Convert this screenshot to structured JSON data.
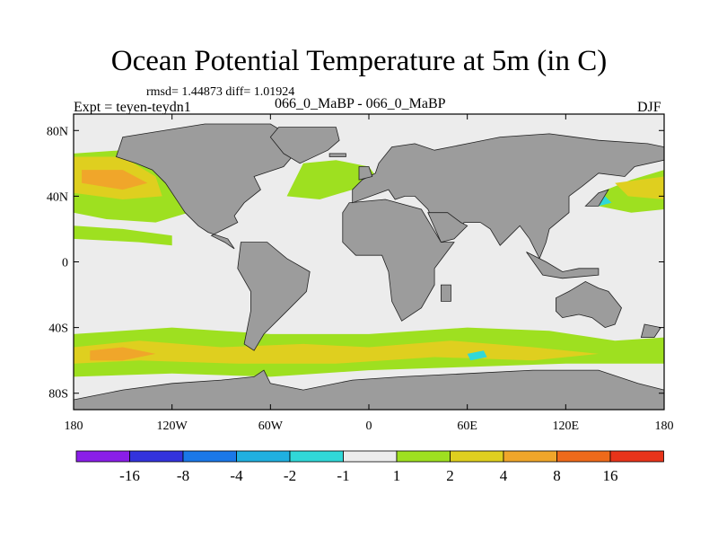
{
  "title": "Ocean Potential Temperature at 5m (in C)",
  "stats": "rmsd= 1.44873 diff= 1.01924",
  "expt": "Expt = teyen-teydn1",
  "subtitle": "066_0_MaBP - 066_0_MaBP",
  "season": "DJF",
  "map": {
    "projection": "cylindrical-equidistant",
    "lon_range": [
      -180,
      180
    ],
    "lat_range": [
      -90,
      90
    ],
    "y_ticks": [
      {
        "lat": 80,
        "label": "80N"
      },
      {
        "lat": 40,
        "label": "40N"
      },
      {
        "lat": 0,
        "label": "0"
      },
      {
        "lat": -40,
        "label": "40S"
      },
      {
        "lat": -80,
        "label": "80S"
      }
    ],
    "x_ticks": [
      {
        "lon": -180,
        "label": "180"
      },
      {
        "lon": -120,
        "label": "120W"
      },
      {
        "lon": -60,
        "label": "60W"
      },
      {
        "lon": 0,
        "label": "0"
      },
      {
        "lon": 60,
        "label": "60E"
      },
      {
        "lon": 120,
        "label": "120E"
      },
      {
        "lon": 180,
        "label": "180"
      }
    ],
    "land_color": "#9c9c9c",
    "ocean_background_color": "#ececec",
    "land_regions": [
      {
        "name": "north-america",
        "points": [
          [
            -150,
            76
          ],
          [
            -100,
            84
          ],
          [
            -60,
            84
          ],
          [
            -40,
            72
          ],
          [
            -52,
            58
          ],
          [
            -70,
            52
          ],
          [
            -66,
            44
          ],
          [
            -76,
            36
          ],
          [
            -82,
            28
          ],
          [
            -80,
            24
          ],
          [
            -88,
            20
          ],
          [
            -96,
            16
          ],
          [
            -88,
            12
          ],
          [
            -82,
            8
          ],
          [
            -86,
            14
          ],
          [
            -98,
            18
          ],
          [
            -104,
            22
          ],
          [
            -112,
            30
          ],
          [
            -116,
            36
          ],
          [
            -124,
            48
          ],
          [
            -132,
            56
          ],
          [
            -142,
            60
          ],
          [
            -154,
            64
          ],
          [
            -150,
            76
          ]
        ]
      },
      {
        "name": "greenland",
        "points": [
          [
            -55,
            82
          ],
          [
            -20,
            82
          ],
          [
            -18,
            74
          ],
          [
            -25,
            68
          ],
          [
            -42,
            60
          ],
          [
            -52,
            66
          ],
          [
            -60,
            76
          ],
          [
            -55,
            82
          ]
        ]
      },
      {
        "name": "south-america",
        "points": [
          [
            -78,
            12
          ],
          [
            -62,
            12
          ],
          [
            -50,
            2
          ],
          [
            -36,
            -6
          ],
          [
            -38,
            -18
          ],
          [
            -48,
            -28
          ],
          [
            -56,
            -36
          ],
          [
            -64,
            -44
          ],
          [
            -70,
            -54
          ],
          [
            -76,
            -50
          ],
          [
            -72,
            -30
          ],
          [
            -72,
            -18
          ],
          [
            -80,
            -4
          ],
          [
            -78,
            12
          ]
        ]
      },
      {
        "name": "africa",
        "points": [
          [
            -16,
            30
          ],
          [
            -12,
            36
          ],
          [
            10,
            38
          ],
          [
            32,
            32
          ],
          [
            44,
            12
          ],
          [
            52,
            12
          ],
          [
            40,
            -4
          ],
          [
            40,
            -14
          ],
          [
            32,
            -28
          ],
          [
            20,
            -36
          ],
          [
            14,
            -24
          ],
          [
            12,
            -6
          ],
          [
            8,
            4
          ],
          [
            -8,
            4
          ],
          [
            -16,
            12
          ],
          [
            -16,
            30
          ]
        ]
      },
      {
        "name": "eurasia",
        "points": [
          [
            -10,
            36
          ],
          [
            -10,
            44
          ],
          [
            -4,
            50
          ],
          [
            4,
            54
          ],
          [
            6,
            60
          ],
          [
            14,
            70
          ],
          [
            28,
            72
          ],
          [
            40,
            68
          ],
          [
            60,
            72
          ],
          [
            80,
            76
          ],
          [
            110,
            78
          ],
          [
            140,
            74
          ],
          [
            170,
            72
          ],
          [
            180,
            70
          ],
          [
            180,
            62
          ],
          [
            162,
            58
          ],
          [
            156,
            52
          ],
          [
            140,
            54
          ],
          [
            130,
            46
          ],
          [
            122,
            40
          ],
          [
            122,
            30
          ],
          [
            110,
            20
          ],
          [
            108,
            12
          ],
          [
            104,
            2
          ],
          [
            98,
            14
          ],
          [
            92,
            22
          ],
          [
            80,
            10
          ],
          [
            74,
            20
          ],
          [
            68,
            24
          ],
          [
            58,
            24
          ],
          [
            56,
            20
          ],
          [
            44,
            14
          ],
          [
            36,
            32
          ],
          [
            28,
            40
          ],
          [
            22,
            40
          ],
          [
            16,
            38
          ],
          [
            12,
            44
          ],
          [
            -10,
            36
          ]
        ]
      },
      {
        "name": "arabia",
        "points": [
          [
            36,
            30
          ],
          [
            48,
            30
          ],
          [
            56,
            24
          ],
          [
            60,
            22
          ],
          [
            52,
            14
          ],
          [
            44,
            12
          ],
          [
            36,
            30
          ]
        ]
      },
      {
        "name": "indonesia",
        "points": [
          [
            96,
            6
          ],
          [
            108,
            0
          ],
          [
            118,
            -6
          ],
          [
            128,
            -4
          ],
          [
            140,
            -4
          ],
          [
            140,
            -8
          ],
          [
            118,
            -10
          ],
          [
            106,
            -8
          ],
          [
            96,
            6
          ]
        ]
      },
      {
        "name": "australia",
        "points": [
          [
            114,
            -22
          ],
          [
            122,
            -18
          ],
          [
            132,
            -12
          ],
          [
            140,
            -16
          ],
          [
            146,
            -18
          ],
          [
            154,
            -28
          ],
          [
            150,
            -38
          ],
          [
            144,
            -40
          ],
          [
            136,
            -34
          ],
          [
            128,
            -32
          ],
          [
            118,
            -34
          ],
          [
            114,
            -30
          ],
          [
            114,
            -22
          ]
        ]
      },
      {
        "name": "madagascar",
        "points": [
          [
            44,
            -14
          ],
          [
            50,
            -14
          ],
          [
            50,
            -24
          ],
          [
            44,
            -24
          ]
        ]
      },
      {
        "name": "japan",
        "points": [
          [
            132,
            34
          ],
          [
            140,
            42
          ],
          [
            146,
            44
          ],
          [
            140,
            34
          ]
        ]
      },
      {
        "name": "antarctica",
        "points": [
          [
            -180,
            -84
          ],
          [
            -180,
            -90
          ],
          [
            180,
            -90
          ],
          [
            180,
            -78
          ],
          [
            164,
            -74
          ],
          [
            140,
            -66
          ],
          [
            100,
            -66
          ],
          [
            60,
            -68
          ],
          [
            20,
            -70
          ],
          [
            -10,
            -72
          ],
          [
            -40,
            -78
          ],
          [
            -60,
            -74
          ],
          [
            -64,
            -66
          ],
          [
            -70,
            -70
          ],
          [
            -90,
            -72
          ],
          [
            -120,
            -74
          ],
          [
            -150,
            -78
          ],
          [
            -180,
            -84
          ]
        ]
      },
      {
        "name": "new-zealand",
        "points": [
          [
            168,
            -38
          ],
          [
            178,
            -40
          ],
          [
            174,
            -46
          ],
          [
            166,
            -46
          ]
        ]
      },
      {
        "name": "uk",
        "points": [
          [
            -6,
            50
          ],
          [
            2,
            52
          ],
          [
            0,
            58
          ],
          [
            -6,
            58
          ]
        ]
      },
      {
        "name": "iceland",
        "points": [
          [
            -24,
            64
          ],
          [
            -14,
            64
          ],
          [
            -14,
            66
          ],
          [
            -24,
            66
          ]
        ]
      }
    ],
    "anomaly_patches": [
      {
        "name": "north-pacific-warm",
        "color": "#9ee020",
        "points": [
          [
            -180,
            66
          ],
          [
            -150,
            68
          ],
          [
            -130,
            58
          ],
          [
            -120,
            46
          ],
          [
            -110,
            30
          ],
          [
            -130,
            24
          ],
          [
            -160,
            26
          ],
          [
            -180,
            30
          ]
        ]
      },
      {
        "name": "north-pacific-core",
        "color": "#dfcf1f",
        "points": [
          [
            -180,
            64
          ],
          [
            -150,
            64
          ],
          [
            -130,
            52
          ],
          [
            -126,
            40
          ],
          [
            -150,
            38
          ],
          [
            -180,
            42
          ]
        ]
      },
      {
        "name": "north-pacific-hot",
        "color": "#f0a62a",
        "points": [
          [
            -175,
            56
          ],
          [
            -150,
            56
          ],
          [
            -135,
            48
          ],
          [
            -150,
            44
          ],
          [
            -175,
            48
          ]
        ]
      },
      {
        "name": "west-pacific-warm",
        "color": "#9ee020",
        "points": [
          [
            140,
            42
          ],
          [
            160,
            50
          ],
          [
            180,
            56
          ],
          [
            180,
            32
          ],
          [
            160,
            30
          ],
          [
            140,
            34
          ]
        ]
      },
      {
        "name": "west-pacific-core",
        "color": "#dfcf1f",
        "points": [
          [
            150,
            48
          ],
          [
            180,
            52
          ],
          [
            180,
            38
          ],
          [
            158,
            40
          ]
        ]
      },
      {
        "name": "northeast-atlantic-warm",
        "color": "#9ee020",
        "points": [
          [
            -40,
            60
          ],
          [
            -20,
            62
          ],
          [
            0,
            58
          ],
          [
            6,
            50
          ],
          [
            -10,
            44
          ],
          [
            -30,
            38
          ],
          [
            -50,
            40
          ]
        ]
      },
      {
        "name": "southern-ocean-warm",
        "color": "#9ee020",
        "points": [
          [
            -180,
            -44
          ],
          [
            -120,
            -40
          ],
          [
            -60,
            -44
          ],
          [
            0,
            -44
          ],
          [
            60,
            -40
          ],
          [
            110,
            -42
          ],
          [
            150,
            -48
          ],
          [
            180,
            -46
          ],
          [
            180,
            -62
          ],
          [
            120,
            -62
          ],
          [
            60,
            -64
          ],
          [
            0,
            -66
          ],
          [
            -60,
            -70
          ],
          [
            -120,
            -68
          ],
          [
            -180,
            -70
          ]
        ]
      },
      {
        "name": "southern-ocean-core",
        "color": "#dfcf1f",
        "points": [
          [
            -180,
            -52
          ],
          [
            -140,
            -48
          ],
          [
            -90,
            -52
          ],
          [
            -40,
            -50
          ],
          [
            0,
            -52
          ],
          [
            50,
            -48
          ],
          [
            100,
            -52
          ],
          [
            140,
            -56
          ],
          [
            100,
            -60
          ],
          [
            40,
            -58
          ],
          [
            -20,
            -62
          ],
          [
            -80,
            -62
          ],
          [
            -140,
            -60
          ],
          [
            -180,
            -62
          ]
        ]
      },
      {
        "name": "southern-ocean-hot",
        "color": "#f0a62a",
        "points": [
          [
            -170,
            -54
          ],
          [
            -150,
            -52
          ],
          [
            -130,
            -56
          ],
          [
            -150,
            -60
          ],
          [
            -170,
            -60
          ]
        ]
      },
      {
        "name": "tropical-pacific-band",
        "color": "#9ee020",
        "points": [
          [
            -180,
            14
          ],
          [
            -140,
            12
          ],
          [
            -120,
            10
          ],
          [
            -120,
            16
          ],
          [
            -150,
            20
          ],
          [
            -180,
            22
          ]
        ]
      },
      {
        "name": "cold-patch-japan-sea",
        "color": "#30d8d8",
        "points": [
          [
            136,
            38
          ],
          [
            144,
            40
          ],
          [
            148,
            36
          ],
          [
            140,
            34
          ]
        ]
      },
      {
        "name": "cold-patch-south-indian",
        "color": "#30d8d8",
        "points": [
          [
            60,
            -56
          ],
          [
            70,
            -54
          ],
          [
            72,
            -58
          ],
          [
            62,
            -60
          ]
        ]
      }
    ]
  },
  "legend": {
    "boxes": [
      {
        "color": "#8a1ee8"
      },
      {
        "color": "#3333dd"
      },
      {
        "color": "#1a78e8"
      },
      {
        "color": "#20b0e0"
      },
      {
        "color": "#30d8d8"
      },
      {
        "color": "#ececec"
      },
      {
        "color": "#9ee020"
      },
      {
        "color": "#dfcf1f"
      },
      {
        "color": "#f0a62a"
      },
      {
        "color": "#ee6a1a"
      },
      {
        "color": "#e8341a"
      }
    ],
    "labels": [
      "-16",
      "-8",
      "-4",
      "-2",
      "-1",
      "1",
      "2",
      "4",
      "8",
      "16"
    ]
  }
}
